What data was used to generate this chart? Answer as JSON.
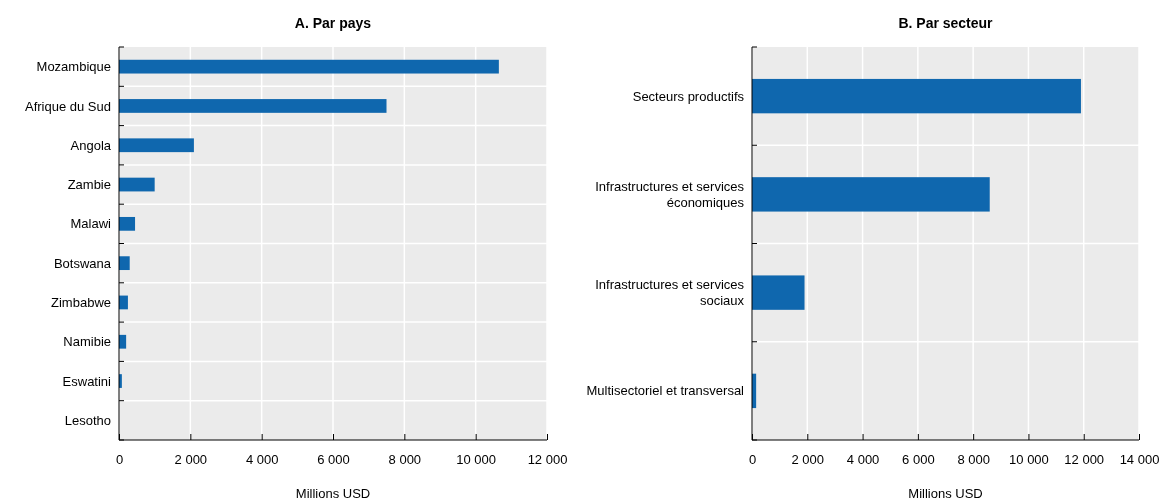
{
  "chart_data": [
    {
      "type": "bar",
      "orientation": "horizontal",
      "title": "A. Par pays",
      "xlabel": "Millions USD",
      "categories": [
        "Mozambique",
        "Afrique du Sud",
        "Angola",
        "Zambie",
        "Malawi",
        "Botswana",
        "Zimbabwe",
        "Namibie",
        "Eswatini",
        "Lesotho"
      ],
      "values": [
        10650,
        7500,
        2100,
        1000,
        450,
        300,
        250,
        200,
        80,
        0
      ],
      "color": "#0f67ae",
      "xlim": [
        0,
        12000
      ],
      "xticks": [
        0,
        {
          "value": 2000,
          "label": "2 000"
        },
        {
          "value": 4000,
          "label": "4 000"
        },
        {
          "value": 6000,
          "label": "6 000"
        },
        {
          "value": 8000,
          "label": "8 000"
        },
        {
          "value": 10000,
          "label": "10 000"
        },
        {
          "value": 12000,
          "label": "12 000"
        }
      ],
      "grid": true
    },
    {
      "type": "bar",
      "orientation": "horizontal",
      "title": "B. Par secteur",
      "xlabel": "Millions USD",
      "categories": [
        "Secteurs productifs",
        "Infrastructures et services économiques",
        "Infrastructures et services sociaux",
        "Multisectoriel et transversal"
      ],
      "values": [
        11900,
        8600,
        1900,
        150
      ],
      "color": "#0f67ae",
      "xlim": [
        0,
        14000
      ],
      "xticks": [
        0,
        {
          "value": 2000,
          "label": "2 000"
        },
        {
          "value": 4000,
          "label": "4 000"
        },
        {
          "value": 6000,
          "label": "6 000"
        },
        {
          "value": 8000,
          "label": "8 000"
        },
        {
          "value": 10000,
          "label": "10 000"
        },
        {
          "value": 12000,
          "label": "12 000"
        },
        {
          "value": 14000,
          "label": "14 000"
        }
      ],
      "grid": true
    }
  ]
}
